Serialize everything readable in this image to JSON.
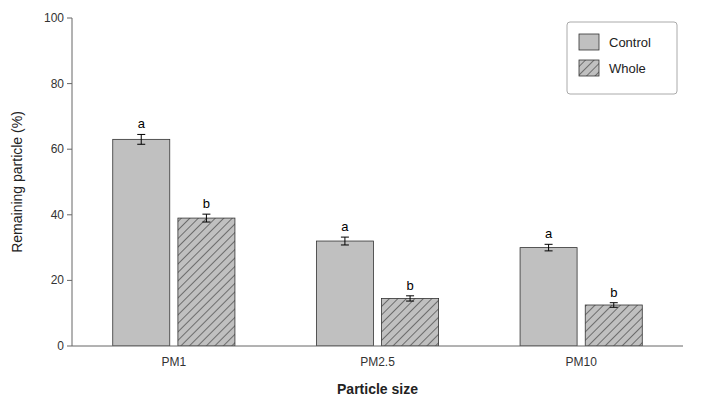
{
  "chart_data": {
    "type": "bar",
    "xlabel": "Particle size",
    "ylabel": "Remaining particle (%)",
    "categories": [
      "PM1",
      "PM2.5",
      "PM10"
    ],
    "series": [
      {
        "name": "Control",
        "color": "#c0c0c0",
        "values": [
          63.0,
          32.0,
          30.0
        ],
        "errors": [
          1.5,
          1.2,
          1.0
        ],
        "annotations": [
          "a",
          "a",
          "a"
        ]
      },
      {
        "name": "Whole",
        "color": "#c0c0c0",
        "values": [
          39.0,
          14.5,
          12.5
        ],
        "errors": [
          1.2,
          0.8,
          0.7
        ],
        "annotations": [
          "b",
          "b",
          "b"
        ]
      }
    ],
    "ylim": [
      0,
      100
    ],
    "yticks": [
      0,
      20,
      40,
      60,
      80,
      100
    ],
    "grid": false,
    "legend": "upper right"
  }
}
